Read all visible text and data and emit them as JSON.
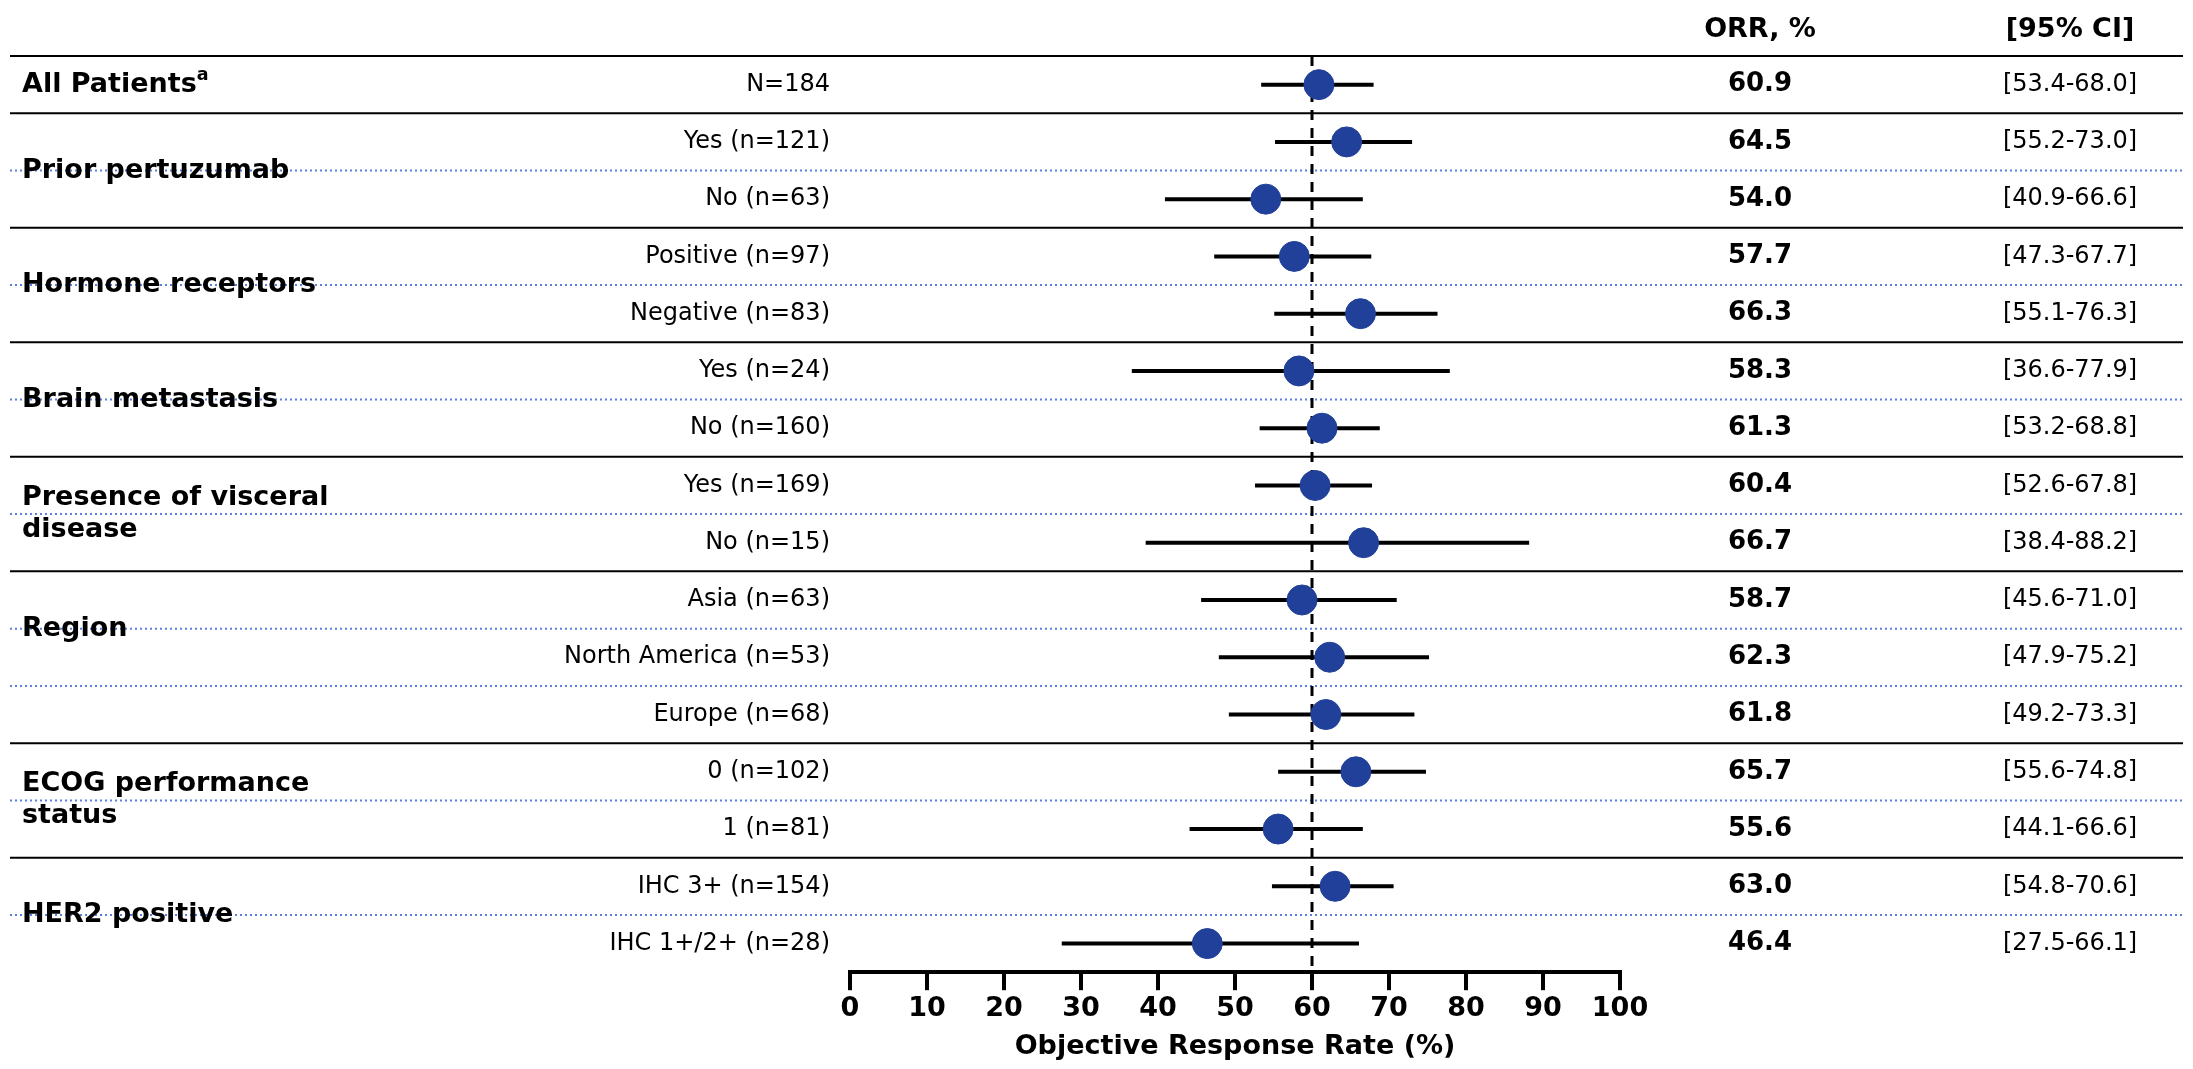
{
  "chart_data": {
    "type": "scatter",
    "orientation": "horizontal",
    "xlabel": "Objective Response Rate (%)",
    "categories": [
      "N=184",
      "Yes (n=121)",
      "No (n=63)",
      "Positive (n=97)",
      "Negative (n=83)",
      "Yes (n=24)",
      "No (n=160)",
      "Yes (n=169)",
      "No (n=15)",
      "Asia (n=63)",
      "North America (n=53)",
      "Europe (n=68)",
      "0 (n=102)",
      "1 (n=81)",
      "IHC 3+ (n=154)",
      "IHC 1+/2+ (n=28)"
    ],
    "y2_categories": [
      "All Patients$^{a}$",
      "Prior pertuzumab",
      null,
      "Hormone receptors",
      null,
      "Brain metastasis",
      null,
      "Presence of visceral disease",
      null,
      "Region",
      null,
      null,
      "ECOG performance status",
      null,
      "HER2 positive",
      null
    ],
    "values": [
      60.9,
      64.5,
      54.0,
      57.7,
      66.3,
      58.3,
      61.3,
      60.4,
      66.7,
      58.7,
      62.3,
      61.8,
      65.7,
      55.6,
      63.0,
      46.4
    ],
    "errors": [
      [
        53.4,
        68.0
      ],
      [
        55.2,
        73.0
      ],
      [
        40.9,
        66.6
      ],
      [
        47.3,
        67.7
      ],
      [
        55.1,
        76.3
      ],
      [
        36.6,
        77.9
      ],
      [
        53.2,
        68.8
      ],
      [
        52.6,
        67.8
      ],
      [
        38.4,
        88.2
      ],
      [
        45.6,
        71.0
      ],
      [
        47.9,
        75.2
      ],
      [
        49.2,
        73.3
      ],
      [
        55.6,
        74.8
      ],
      [
        44.1,
        66.6
      ],
      [
        54.8,
        70.6
      ],
      [
        27.5,
        66.1
      ]
    ],
    "value_labels": [
      "60.9",
      "64.5",
      "54.0",
      "57.7",
      "66.3",
      "58.3",
      "61.3",
      "60.4",
      "66.7",
      "58.7",
      "62.3",
      "61.8",
      "65.7",
      "55.6",
      "63.0",
      "46.4"
    ],
    "color": "#21409a",
    "marker": "circle",
    "legend": false,
    "grid": false,
    "xlim": [
      0,
      100
    ],
    "xticks": [
      0,
      10,
      20,
      30,
      40,
      50,
      60,
      70,
      80,
      90,
      100
    ],
    "ref_lines": [
      {
        "axis": "x",
        "value": 60,
        "line_style": "dashed",
        "color": "#000000"
      }
    ],
    "annotations": [
      "ORR, %",
      "[95% CI]",
      "[53.4-68.0]",
      "[55.2-73.0]",
      "[40.9-66.6]",
      "[47.3-67.7]",
      "[55.1-76.3]",
      "[36.6-77.9]",
      "[53.2-68.8]",
      "[52.6-67.8]",
      "[38.4-88.2]",
      "[45.6-71.0]",
      "[47.9-75.2]",
      "[49.2-73.3]",
      "[55.6-74.8]",
      "[44.1-66.6]",
      "[54.8-70.6]",
      "[27.5-66.1]"
    ]
  }
}
